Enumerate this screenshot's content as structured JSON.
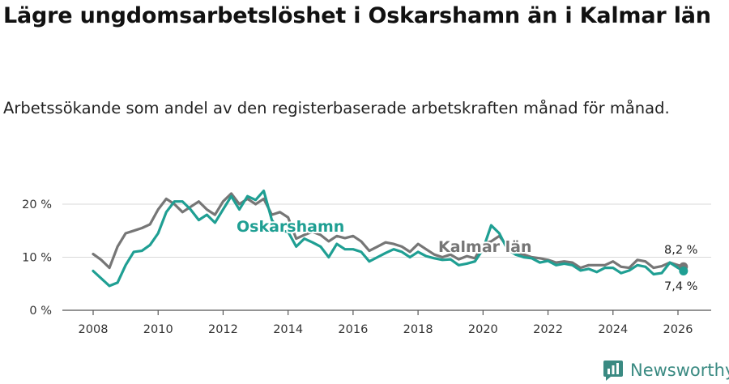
{
  "title": "Lägre ungdomsarbetslöshet i Oskarshamn än i Kalmar län",
  "subtitle": "Arbetssökande som andel av den registerbaserade arbetskraften månad för månad.",
  "brand": {
    "name": "Newsworthy",
    "icon": "bar-chart-logo-icon"
  },
  "colors": {
    "oskarshamn": "#1f9f93",
    "kalmar": "#767676",
    "axis": "#555555",
    "grid": "#d9d9d9",
    "brand": "#3a8a82"
  },
  "chart_data": {
    "type": "line",
    "title": "Lägre ungdomsarbetslöshet i Oskarshamn än i Kalmar län",
    "xlabel": "",
    "ylabel": "",
    "xlim": [
      2007.0,
      2026.7
    ],
    "ylim": [
      0,
      20
    ],
    "grid": true,
    "legend": "inline labels",
    "x_ticks": [
      2008,
      2010,
      2012,
      2014,
      2016,
      2018,
      2020,
      2022,
      2024,
      2026
    ],
    "x_tick_labels": [
      "2008",
      "2010",
      "2012",
      "2014",
      "2016",
      "2018",
      "2020",
      "2022",
      "2024",
      "2026"
    ],
    "y_ticks": [
      0,
      10,
      20
    ],
    "y_tick_labels": [
      "0 %",
      "10 %",
      "20 %"
    ],
    "series": [
      {
        "name": "Oskarshamn",
        "label": "Oskarshamn",
        "color": "#1f9f93",
        "end_label": "7,4 %",
        "end_value": 7.4,
        "x": [
          2008.0,
          2008.25,
          2008.5,
          2008.75,
          2009.0,
          2009.25,
          2009.5,
          2009.75,
          2010.0,
          2010.25,
          2010.5,
          2010.75,
          2011.0,
          2011.25,
          2011.5,
          2011.75,
          2012.0,
          2012.25,
          2012.5,
          2012.75,
          2013.0,
          2013.25,
          2013.5,
          2013.75,
          2014.0,
          2014.25,
          2014.5,
          2014.75,
          2015.0,
          2015.25,
          2015.5,
          2015.75,
          2016.0,
          2016.25,
          2016.5,
          2016.75,
          2017.0,
          2017.25,
          2017.5,
          2017.75,
          2018.0,
          2018.25,
          2018.5,
          2018.75,
          2019.0,
          2019.25,
          2019.5,
          2019.75,
          2020.0,
          2020.25,
          2020.5,
          2020.75,
          2021.0,
          2021.25,
          2021.5,
          2021.75,
          2022.0,
          2022.25,
          2022.5,
          2022.75,
          2023.0,
          2023.25,
          2023.5,
          2023.75,
          2024.0,
          2024.25,
          2024.5,
          2024.75,
          2025.0,
          2025.25,
          2025.5,
          2025.75,
          2026.0,
          2026.17
        ],
        "values": [
          7.4,
          6.0,
          4.6,
          5.2,
          8.5,
          11.0,
          11.2,
          12.3,
          14.5,
          18.5,
          20.5,
          20.5,
          19.0,
          17.0,
          18.0,
          16.5,
          19.0,
          21.5,
          19.0,
          21.5,
          20.8,
          22.5,
          17.0,
          15.0,
          14.8,
          12.0,
          13.5,
          12.8,
          12.0,
          10.0,
          12.5,
          11.5,
          11.5,
          11.0,
          9.2,
          10.0,
          10.8,
          11.5,
          11.0,
          10.0,
          11.0,
          10.2,
          9.8,
          9.5,
          9.6,
          8.5,
          8.8,
          9.2,
          11.5,
          16.0,
          14.5,
          11.5,
          10.5,
          10.0,
          9.8,
          9.0,
          9.3,
          8.5,
          8.8,
          8.5,
          7.5,
          7.8,
          7.2,
          8.0,
          8.0,
          7.0,
          7.5,
          8.5,
          8.2,
          6.8,
          7.0,
          9.0,
          8.0,
          7.4
        ]
      },
      {
        "name": "Kalmar län",
        "label": "Kalmar län",
        "color": "#767676",
        "end_label": "8,2 %",
        "end_value": 8.2,
        "x": [
          2008.0,
          2008.25,
          2008.5,
          2008.75,
          2009.0,
          2009.25,
          2009.5,
          2009.75,
          2010.0,
          2010.25,
          2010.5,
          2010.75,
          2011.0,
          2011.25,
          2011.5,
          2011.75,
          2012.0,
          2012.25,
          2012.5,
          2012.75,
          2013.0,
          2013.25,
          2013.5,
          2013.75,
          2014.0,
          2014.25,
          2014.5,
          2014.75,
          2015.0,
          2015.25,
          2015.5,
          2015.75,
          2016.0,
          2016.25,
          2016.5,
          2016.75,
          2017.0,
          2017.25,
          2017.5,
          2017.75,
          2018.0,
          2018.25,
          2018.5,
          2018.75,
          2019.0,
          2019.25,
          2019.5,
          2019.75,
          2020.0,
          2020.25,
          2020.5,
          2020.75,
          2021.0,
          2021.25,
          2021.5,
          2021.75,
          2022.0,
          2022.25,
          2022.5,
          2022.75,
          2023.0,
          2023.25,
          2023.5,
          2023.75,
          2024.0,
          2024.25,
          2024.5,
          2024.75,
          2025.0,
          2025.25,
          2025.5,
          2025.75,
          2026.0,
          2026.17
        ],
        "values": [
          10.6,
          9.5,
          8.0,
          12.0,
          14.5,
          15.0,
          15.5,
          16.2,
          19.0,
          21.0,
          20.0,
          18.5,
          19.5,
          20.5,
          19.0,
          18.0,
          20.5,
          22.0,
          20.0,
          21.0,
          20.0,
          21.0,
          18.0,
          18.5,
          17.5,
          13.5,
          14.2,
          14.8,
          14.2,
          13.0,
          14.0,
          13.6,
          14.0,
          13.0,
          11.2,
          12.0,
          12.8,
          12.5,
          12.0,
          11.0,
          12.5,
          11.5,
          10.5,
          10.0,
          10.5,
          9.6,
          10.2,
          9.8,
          12.5,
          13.0,
          14.0,
          12.0,
          10.8,
          10.5,
          10.0,
          9.8,
          9.5,
          9.0,
          9.2,
          9.0,
          8.0,
          8.5,
          8.5,
          8.5,
          9.2,
          8.2,
          8.0,
          9.5,
          9.2,
          8.0,
          8.3,
          9.0,
          8.5,
          8.2
        ]
      }
    ]
  }
}
